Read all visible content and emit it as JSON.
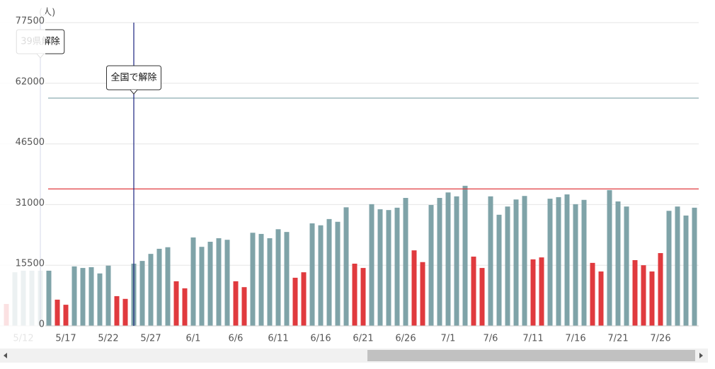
{
  "chart_data": {
    "type": "bar",
    "y_unit": "(人)",
    "categories": [
      null,
      null,
      "5/12",
      null,
      null,
      null,
      null,
      "5/17",
      null,
      null,
      null,
      null,
      "5/22",
      null,
      null,
      null,
      null,
      "5/27",
      null,
      null,
      null,
      null,
      "6/1",
      null,
      null,
      null,
      null,
      "6/6",
      null,
      null,
      null,
      null,
      "6/11",
      null,
      null,
      null,
      null,
      "6/16",
      null,
      null,
      null,
      null,
      "6/21",
      null,
      null,
      null,
      null,
      "6/26",
      null,
      null,
      null,
      null,
      "7/1",
      null,
      null,
      null,
      null,
      "7/6",
      null,
      null,
      null,
      null,
      "7/11",
      null,
      null,
      null,
      null,
      "7/16",
      null,
      null,
      null,
      null,
      "7/21",
      null,
      null,
      null,
      null,
      "7/26",
      null,
      null,
      null,
      null
    ],
    "values": [
      5600,
      13700,
      14100,
      14100,
      14100,
      14100,
      6700,
      5400,
      15200,
      14800,
      15000,
      13400,
      15400,
      7600,
      6900,
      15900,
      16600,
      18400,
      19700,
      20100,
      11400,
      9600,
      22600,
      20200,
      21500,
      22400,
      22000,
      11400,
      9900,
      23800,
      23500,
      22400,
      24700,
      24000,
      12300,
      13700,
      26200,
      25700,
      27300,
      26600,
      30300,
      15900,
      14800,
      31100,
      29800,
      29600,
      30200,
      32700,
      19300,
      16300,
      30900,
      32700,
      34100,
      33100,
      35800,
      17700,
      14800,
      33100,
      28400,
      30500,
      32300,
      33200,
      17000,
      17500,
      32500,
      32900,
      33600,
      31100,
      32200,
      16100,
      13900,
      34700,
      31800,
      30500,
      16800,
      15500,
      13900,
      18600,
      29400,
      30500,
      28200,
      30200
    ],
    "colors": [
      "#e03a3e",
      "#7fa3a8",
      "#7fa3a8",
      "#7fa3a8",
      "#7fa3a8",
      "#7fa3a8",
      "#e03a3e",
      "#e03a3e",
      "#7fa3a8",
      "#7fa3a8",
      "#7fa3a8",
      "#7fa3a8",
      "#7fa3a8",
      "#e03a3e",
      "#e03a3e",
      "#7fa3a8",
      "#7fa3a8",
      "#7fa3a8",
      "#7fa3a8",
      "#7fa3a8",
      "#e03a3e",
      "#e03a3e",
      "#7fa3a8",
      "#7fa3a8",
      "#7fa3a8",
      "#7fa3a8",
      "#7fa3a8",
      "#e03a3e",
      "#e03a3e",
      "#7fa3a8",
      "#7fa3a8",
      "#7fa3a8",
      "#7fa3a8",
      "#7fa3a8",
      "#e03a3e",
      "#e03a3e",
      "#7fa3a8",
      "#7fa3a8",
      "#7fa3a8",
      "#7fa3a8",
      "#7fa3a8",
      "#e03a3e",
      "#e03a3e",
      "#7fa3a8",
      "#7fa3a8",
      "#7fa3a8",
      "#7fa3a8",
      "#7fa3a8",
      "#e03a3e",
      "#e03a3e",
      "#7fa3a8",
      "#7fa3a8",
      "#7fa3a8",
      "#7fa3a8",
      "#7fa3a8",
      "#e03a3e",
      "#e03a3e",
      "#7fa3a8",
      "#7fa3a8",
      "#7fa3a8",
      "#7fa3a8",
      "#7fa3a8",
      "#e03a3e",
      "#e03a3e",
      "#7fa3a8",
      "#7fa3a8",
      "#7fa3a8",
      "#7fa3a8",
      "#7fa3a8",
      "#e03a3e",
      "#e03a3e",
      "#7fa3a8",
      "#7fa3a8",
      "#7fa3a8",
      "#e03a3e",
      "#e03a3e",
      "#e03a3e",
      "#e03a3e",
      "#7fa3a8",
      "#7fa3a8",
      "#7fa3a8",
      "#7fa3a8"
    ],
    "ylim": [
      0,
      77500
    ],
    "yticks": [
      0,
      15500,
      31000,
      46500,
      62000,
      77500
    ],
    "grid": true,
    "reference_lines": [
      {
        "value": 58200,
        "color": "#7fa3a8"
      },
      {
        "value": 35000,
        "color": "#e03a3e"
      }
    ],
    "annotations": [
      {
        "index": 4,
        "label": "39県解除"
      },
      {
        "index": 15,
        "label": "全国で解除"
      }
    ]
  }
}
